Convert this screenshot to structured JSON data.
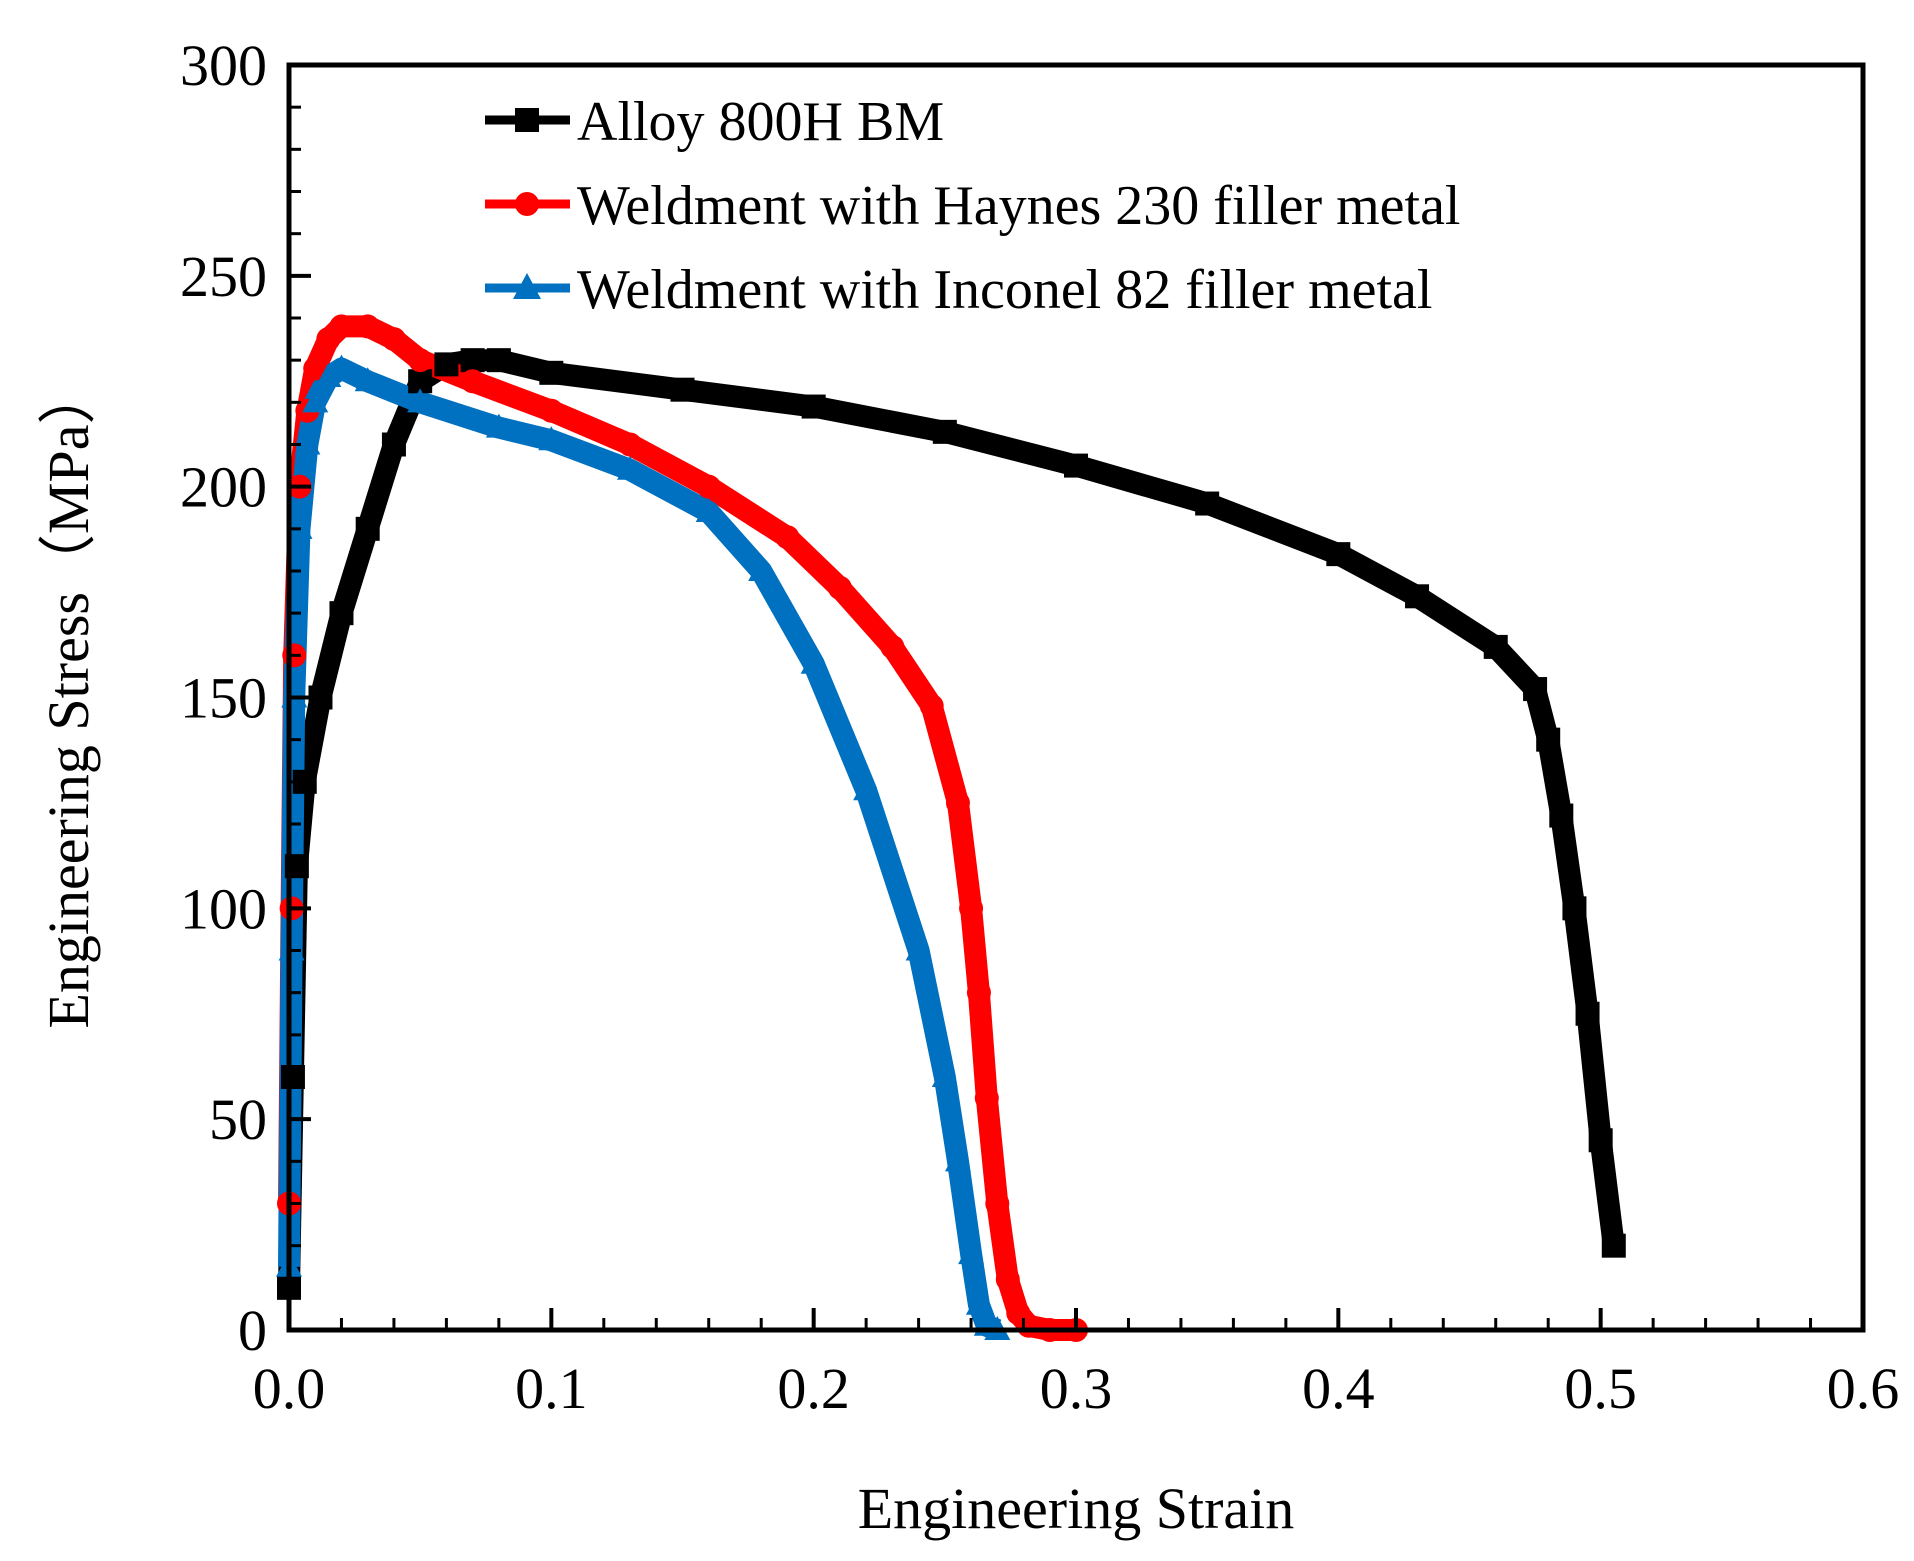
{
  "chart_data": {
    "type": "line",
    "title": "",
    "xlabel": "Engineering Strain",
    "ylabel": "Engineering Stress（MPa）",
    "xlim": [
      0.0,
      0.6
    ],
    "ylim": [
      0,
      300
    ],
    "x_ticks": [
      0.0,
      0.1,
      0.2,
      0.3,
      0.4,
      0.5,
      0.6
    ],
    "x_tick_labels": [
      "0.0",
      "0.1",
      "0.2",
      "0.3",
      "0.4",
      "0.5",
      "0.6"
    ],
    "y_ticks": [
      0,
      50,
      100,
      150,
      200,
      250,
      300
    ],
    "y_tick_labels": [
      "0",
      "50",
      "100",
      "150",
      "200",
      "250",
      "300"
    ],
    "grid": false,
    "legend_position": "top-left",
    "series": [
      {
        "name": "Alloy 800H BM",
        "color": "#000000",
        "marker": "square",
        "x": [
          0.0,
          0.0015,
          0.003,
          0.006,
          0.012,
          0.02,
          0.03,
          0.04,
          0.05,
          0.06,
          0.07,
          0.08,
          0.1,
          0.15,
          0.2,
          0.25,
          0.3,
          0.35,
          0.4,
          0.43,
          0.46,
          0.475,
          0.48,
          0.485,
          0.49,
          0.495,
          0.5,
          0.505
        ],
        "values": [
          10,
          60,
          110,
          130,
          150,
          170,
          190,
          210,
          225,
          229,
          230,
          230,
          227,
          223,
          219,
          213,
          205,
          196,
          184,
          174,
          162,
          152,
          140,
          122,
          100,
          75,
          45,
          20
        ]
      },
      {
        "name": "Weldment with Haynes 230 filler metal",
        "color": "#ff0000",
        "marker": "circle",
        "x": [
          0.0,
          0.001,
          0.002,
          0.004,
          0.007,
          0.01,
          0.015,
          0.02,
          0.03,
          0.04,
          0.05,
          0.07,
          0.1,
          0.13,
          0.16,
          0.19,
          0.21,
          0.23,
          0.245,
          0.255,
          0.26,
          0.263,
          0.266,
          0.27,
          0.274,
          0.278,
          0.282,
          0.29,
          0.3
        ],
        "values": [
          30,
          100,
          160,
          200,
          218,
          228,
          235,
          238,
          238,
          235,
          230,
          225,
          218,
          210,
          200,
          188,
          176,
          162,
          148,
          125,
          100,
          80,
          55,
          30,
          12,
          4,
          1,
          0,
          0
        ]
      },
      {
        "name": "Weldment with Inconel 82 filler metal",
        "color": "#0070c0",
        "marker": "triangle",
        "x": [
          0.0,
          0.001,
          0.002,
          0.004,
          0.007,
          0.01,
          0.015,
          0.02,
          0.03,
          0.05,
          0.08,
          0.1,
          0.13,
          0.16,
          0.18,
          0.2,
          0.22,
          0.24,
          0.25,
          0.255,
          0.26,
          0.263,
          0.266,
          0.27
        ],
        "values": [
          15,
          90,
          150,
          190,
          210,
          220,
          226,
          228,
          225,
          220,
          214,
          211,
          204,
          194,
          180,
          158,
          128,
          90,
          60,
          40,
          18,
          6,
          1,
          0
        ]
      }
    ]
  }
}
